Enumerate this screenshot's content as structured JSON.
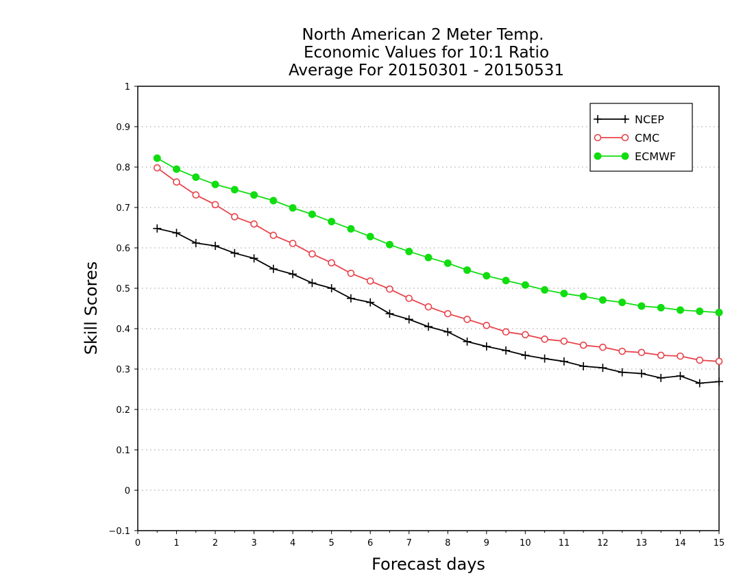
{
  "chart_data": {
    "type": "line",
    "title_lines": [
      "North American 2 Meter Temp.",
      "Economic Values for 10:1 Ratio",
      "Average For 20150301 - 20150531"
    ],
    "xlabel": "Forecast days",
    "ylabel": "Skill Scores",
    "xlim": [
      0,
      15
    ],
    "ylim": [
      -0.1,
      1
    ],
    "xticks": [
      "0",
      "1",
      "2",
      "3",
      "4",
      "5",
      "6",
      "7",
      "8",
      "9",
      "10",
      "11",
      "12",
      "13",
      "14",
      "15"
    ],
    "yticks": [
      "−0.1",
      "0",
      "0.1",
      "0.2",
      "0.3",
      "0.4",
      "0.5",
      "0.6",
      "0.7",
      "0.8",
      "0.9",
      "1"
    ],
    "grid": "horizontal dotted",
    "legend_position": "top-right",
    "x": [
      0.5,
      1,
      1.5,
      2,
      2.5,
      3,
      3.5,
      4,
      4.5,
      5,
      5.5,
      6,
      6.5,
      7,
      7.5,
      8,
      8.5,
      9,
      9.5,
      10,
      10.5,
      11,
      11.5,
      12,
      12.5,
      13,
      13.5,
      14,
      14.5,
      15
    ],
    "series": [
      {
        "name": "NCEP",
        "color": "#000000",
        "marker": "plus",
        "values": [
          0.648,
          0.637,
          0.612,
          0.605,
          0.587,
          0.574,
          0.548,
          0.535,
          0.513,
          0.5,
          0.475,
          0.465,
          0.437,
          0.423,
          0.405,
          0.392,
          0.368,
          0.356,
          0.346,
          0.334,
          0.326,
          0.319,
          0.307,
          0.303,
          0.292,
          0.289,
          0.278,
          0.283,
          0.265,
          0.269
        ]
      },
      {
        "name": "CMC",
        "color": "#e8424a",
        "marker": "open-circle",
        "values": [
          0.798,
          0.763,
          0.731,
          0.707,
          0.677,
          0.659,
          0.631,
          0.611,
          0.585,
          0.563,
          0.537,
          0.518,
          0.498,
          0.475,
          0.454,
          0.437,
          0.423,
          0.408,
          0.392,
          0.385,
          0.374,
          0.369,
          0.359,
          0.354,
          0.344,
          0.341,
          0.334,
          0.332,
          0.322,
          0.319
        ]
      },
      {
        "name": "ECMWF",
        "color": "#11dd11",
        "marker": "filled-circle",
        "values": [
          0.822,
          0.795,
          0.775,
          0.757,
          0.744,
          0.731,
          0.717,
          0.699,
          0.683,
          0.665,
          0.647,
          0.628,
          0.608,
          0.591,
          0.576,
          0.562,
          0.545,
          0.531,
          0.519,
          0.508,
          0.496,
          0.487,
          0.48,
          0.471,
          0.465,
          0.456,
          0.452,
          0.446,
          0.443,
          0.44
        ]
      }
    ]
  }
}
